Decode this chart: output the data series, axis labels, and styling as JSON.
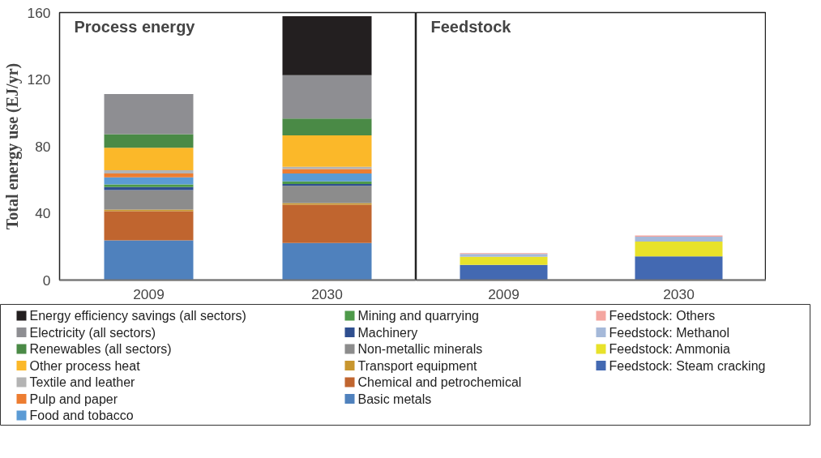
{
  "chart_data": [
    {
      "type": "bar",
      "title": "Process energy",
      "ylabel": "Total energy use (EJ/yr)",
      "categories": [
        "2009",
        "2030"
      ],
      "stacked": true,
      "ylim": [
        0,
        160
      ],
      "yticks": [
        0,
        40,
        80,
        120,
        160
      ],
      "legend": "bottom",
      "series": [
        {
          "name": "Basic metals",
          "color": "#4f81bd",
          "values": [
            23.7,
            22.2
          ]
        },
        {
          "name": "Chemical and petrochemical",
          "color": "#c0652f",
          "values": [
            17.5,
            22.9
          ]
        },
        {
          "name": "Transport equipment",
          "color": "#c8962e",
          "values": [
            1,
            1
          ]
        },
        {
          "name": "Non-metallic minerals",
          "color": "#8c8c8c",
          "values": [
            11.6,
            10.3
          ]
        },
        {
          "name": "Machinery",
          "color": "#2f4f8f",
          "values": [
            1.8,
            1.1
          ]
        },
        {
          "name": "Mining and quarrying",
          "color": "#4e9a4a",
          "values": [
            1.6,
            1.5
          ]
        },
        {
          "name": "Food and tobacco",
          "color": "#5b9bd5",
          "values": [
            4.3,
            4.8
          ]
        },
        {
          "name": "Pulp and paper",
          "color": "#ed7d31",
          "values": [
            2.3,
            2.6
          ]
        },
        {
          "name": "Textile and leather",
          "color": "#b4b4b4",
          "values": [
            1.9,
            1.3
          ]
        },
        {
          "name": "Other process heat",
          "color": "#fbb829",
          "values": [
            13.5,
            18.8
          ]
        },
        {
          "name": "Renewables (all sectors)",
          "color": "#4a8a46",
          "values": [
            8.1,
            10.1
          ]
        },
        {
          "name": "Electricity (all sectors)",
          "color": "#8e8e92",
          "values": [
            24.0,
            25.9
          ]
        },
        {
          "name": "Energy efficiency savings (all sectors)",
          "color": "#231f20",
          "values": [
            null,
            35.3
          ]
        }
      ]
    },
    {
      "type": "bar",
      "title": "Feedstock",
      "categories": [
        "2009",
        "2030"
      ],
      "stacked": true,
      "ylim": [
        0,
        160
      ],
      "tick_labels": "x",
      "legend": "bottom",
      "series": [
        {
          "name": "Feedstock: Steam cracking",
          "color": "#4369b2",
          "values": [
            9.1,
            14.2
          ]
        },
        {
          "name": "Feedstock: Ammonia",
          "color": "#e8e22a",
          "values": [
            4.9,
            8.8
          ]
        },
        {
          "name": "Feedstock: Methanol",
          "color": "#a5b9d9",
          "values": [
            1.6,
            3.0
          ]
        },
        {
          "name": "Feedstock: Others",
          "color": "#f4a6a0",
          "values": [
            0.5,
            0.7
          ]
        }
      ]
    }
  ]
}
